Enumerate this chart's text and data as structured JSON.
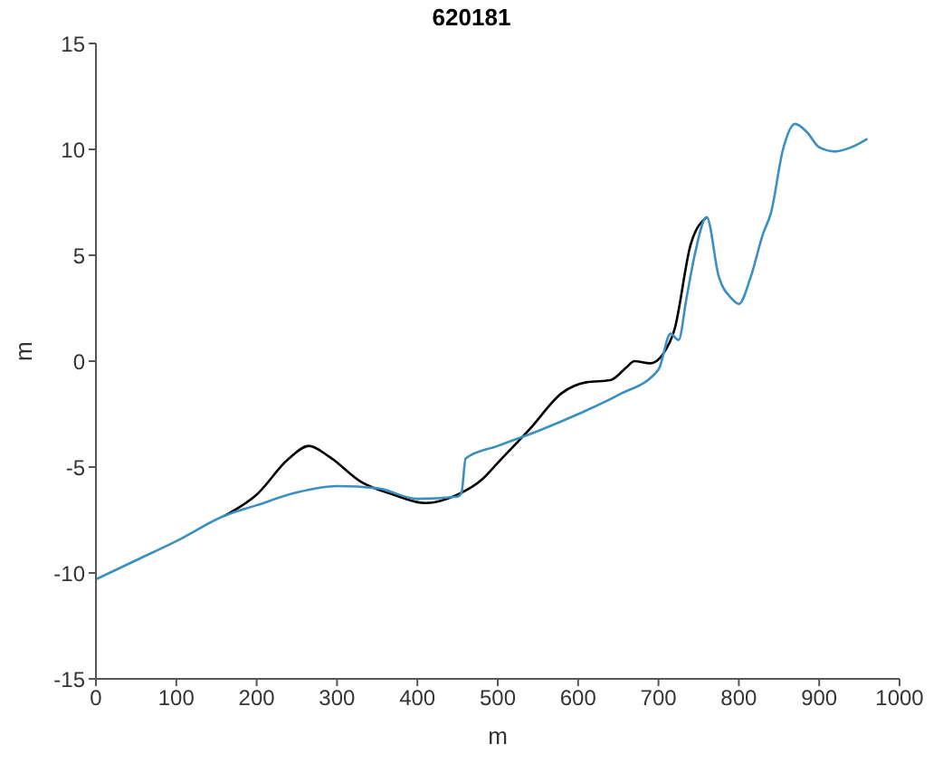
{
  "chart_data": {
    "type": "line",
    "title": "620181",
    "xlabel": "m",
    "ylabel": "m",
    "xlim": [
      0,
      1000
    ],
    "xticks": [
      0,
      100,
      200,
      300,
      400,
      500,
      600,
      700,
      800,
      900,
      1000
    ],
    "ylim": [
      -15,
      15
    ],
    "yticks": [
      -15,
      -10,
      -5,
      0,
      5,
      10,
      15
    ],
    "grid": false,
    "legend": false,
    "marker": "none",
    "line_style": "solid",
    "series": [
      {
        "color": "#000000",
        "x": [
          160,
          200,
          240,
          265,
          290,
          330,
          370,
          410,
          450,
          480,
          500,
          540,
          580,
          610,
          640,
          660,
          670,
          690,
          705,
          720,
          740,
          760
        ],
        "values": [
          -7.3,
          -6.3,
          -4.6,
          -4.0,
          -4.5,
          -5.7,
          -6.3,
          -6.7,
          -6.3,
          -5.6,
          -4.8,
          -3.2,
          -1.5,
          -1.0,
          -0.9,
          -0.3,
          0.0,
          -0.1,
          0.3,
          1.5,
          5.5,
          6.8
        ]
      },
      {
        "color": "#3a8fc2",
        "x": [
          0,
          50,
          100,
          160,
          200,
          250,
          300,
          350,
          400,
          450,
          455,
          460,
          500,
          550,
          600,
          650,
          700,
          715,
          725,
          735,
          745,
          760,
          775,
          790,
          800,
          815,
          830,
          840,
          855,
          870,
          885,
          900,
          920,
          940,
          960
        ],
        "values": [
          -10.3,
          -9.4,
          -8.5,
          -7.3,
          -6.8,
          -6.2,
          -5.9,
          -6.0,
          -6.5,
          -6.4,
          -6.2,
          -4.6,
          -4.0,
          -3.3,
          -2.5,
          -1.6,
          -0.4,
          1.3,
          1.0,
          3.0,
          5.0,
          6.8,
          4.0,
          3.0,
          2.7,
          4.0,
          6.0,
          7.0,
          10.0,
          11.2,
          10.8,
          10.1,
          9.9,
          10.1,
          10.5
        ]
      }
    ]
  }
}
